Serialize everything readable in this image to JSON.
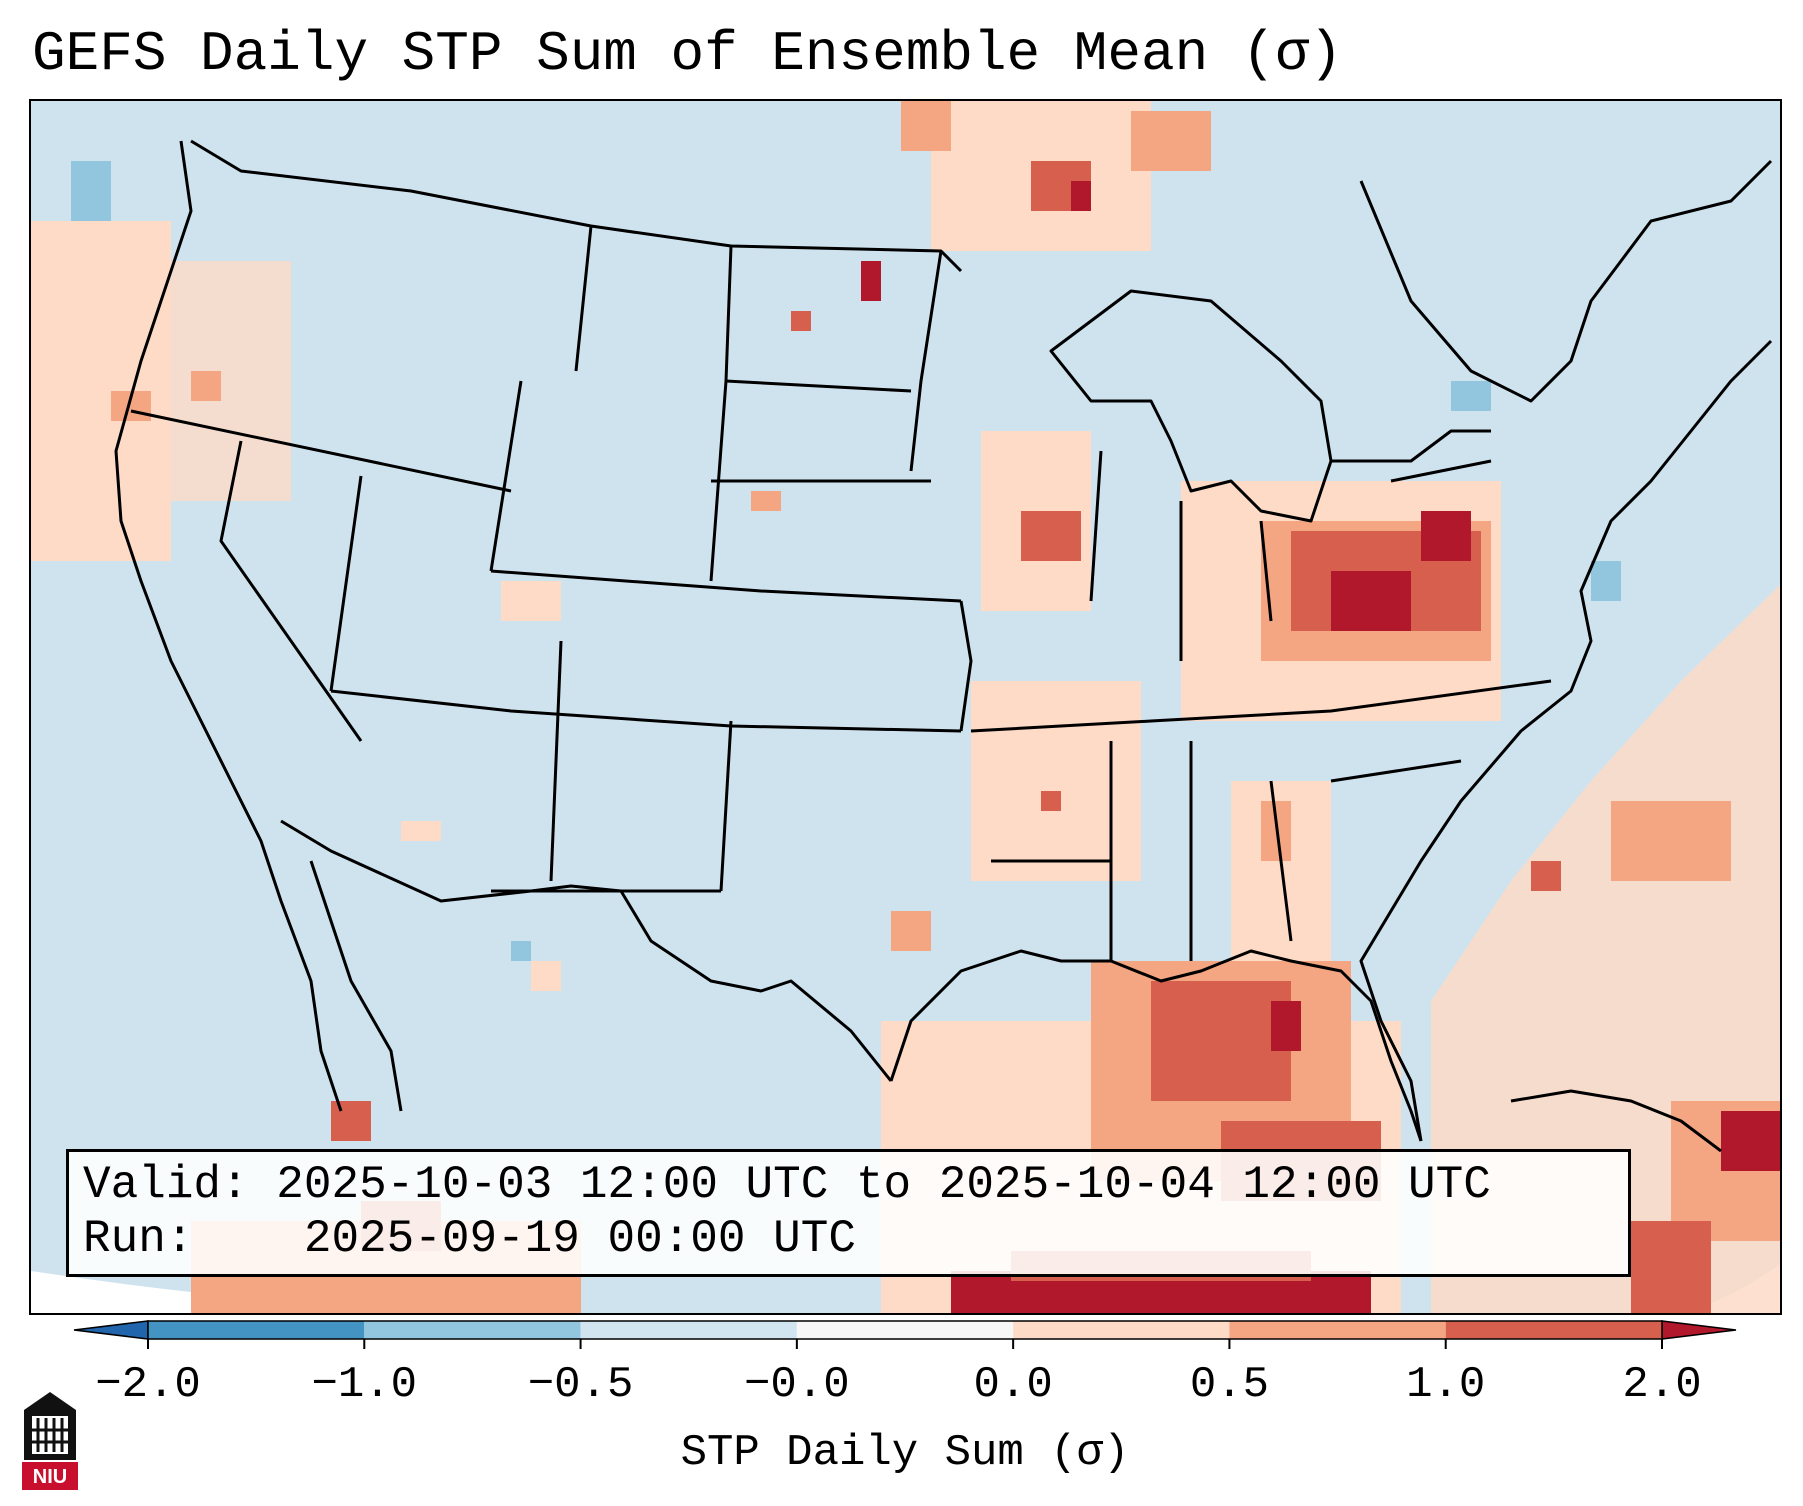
{
  "title": "GEFS Daily STP Sum of Ensemble Mean (σ)",
  "info": {
    "valid_label": "Valid:",
    "valid_value": "2025-10-03 12:00 UTC to 2025-10-04 12:00 UTC",
    "run_label": "Run:",
    "run_value": "2025-09-19 00:00 UTC"
  },
  "colorbar": {
    "label": "STP Daily Sum (σ)",
    "ticks": [
      "−2.0",
      "−1.0",
      "−0.5",
      "−0.0",
      "0.0",
      "0.5",
      "1.0",
      "2.0"
    ],
    "colors": [
      "#4393c3",
      "#92c5de",
      "#d1e5f0",
      "#f7f7f7",
      "#fddbc7",
      "#f4a582",
      "#d6604d"
    ],
    "under_color": "#2166ac",
    "over_color": "#b2182b"
  },
  "map": {
    "background_color": "#cfe3ef",
    "boundary_color": "#000000"
  },
  "logo": {
    "text": "NIU"
  }
}
